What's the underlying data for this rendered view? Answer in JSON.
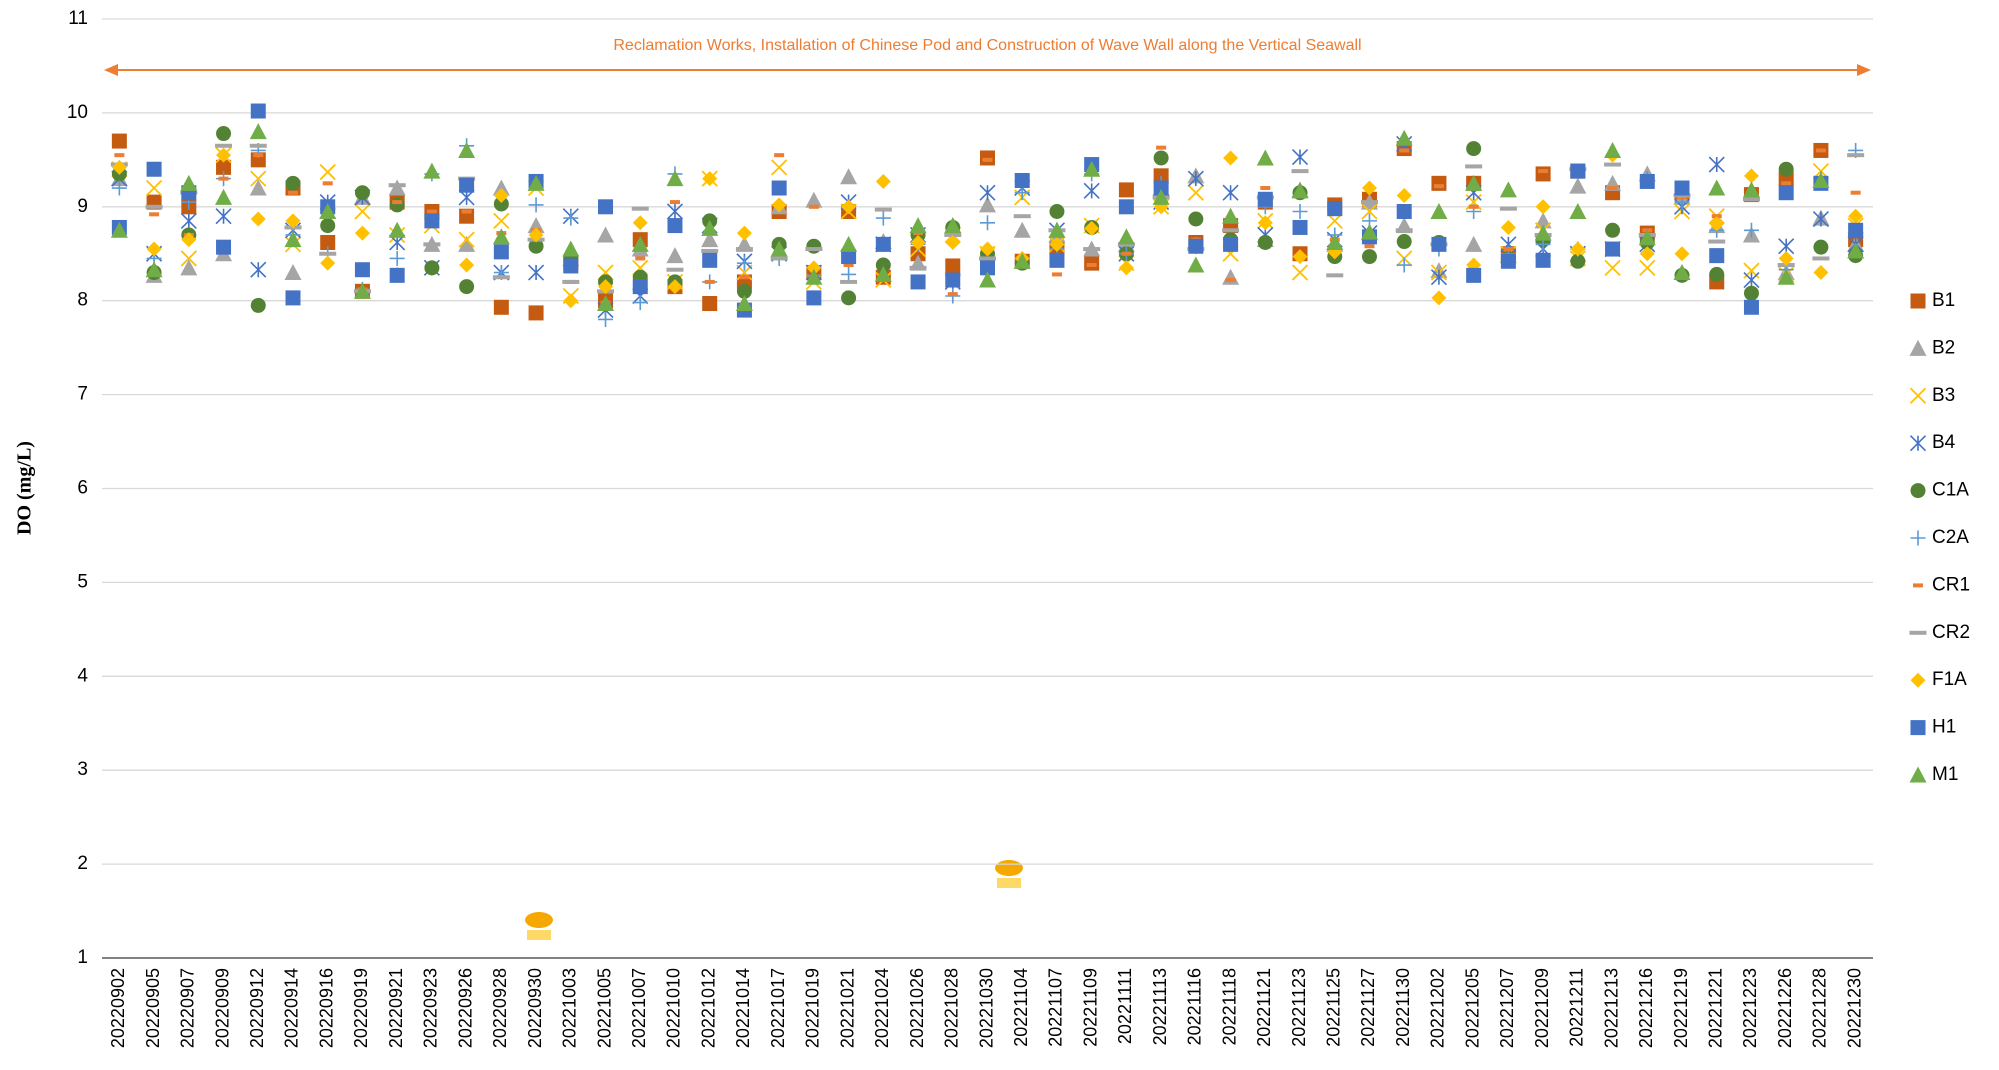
{
  "chart_data": {
    "type": "scatter",
    "y_label": "DO (mg/L)",
    "annotation": "Reclamation Works, Installation of Chinese Pod and Construction of Wave Wall along the Vertical Seawall",
    "annotation_color": "#ed7d31",
    "ylim": [
      1,
      11
    ],
    "yticks": [
      1,
      2,
      3,
      4,
      5,
      6,
      7,
      8,
      9,
      10,
      11
    ],
    "grid": true,
    "legend": "right",
    "categories": [
      "20220902",
      "20220905",
      "20220907",
      "20220909",
      "20220912",
      "20220914",
      "20220916",
      "20220919",
      "20220921",
      "20220923",
      "20220926",
      "20220928",
      "20220930",
      "20221003",
      "20221005",
      "20221007",
      "20221010",
      "20221012",
      "20221014",
      "20221017",
      "20221019",
      "20221021",
      "20221024",
      "20221026",
      "20221028",
      "20221030",
      "20221104",
      "20221107",
      "20221109",
      "20221111",
      "20221113",
      "20221116",
      "20221118",
      "20221121",
      "20221123",
      "20221125",
      "20221127",
      "20221130",
      "20221202",
      "20221205",
      "20221207",
      "20221209",
      "20221211",
      "20221213",
      "20221216",
      "20221219",
      "20221221",
      "20221223",
      "20221226",
      "20221228",
      "20221230"
    ],
    "series": [
      {
        "name": "B1",
        "color": "#c55a11",
        "marker": "square",
        "values": [
          9.7,
          9.05,
          9.0,
          9.42,
          9.5,
          9.2,
          8.62,
          8.1,
          9.05,
          8.95,
          8.9,
          7.93,
          7.87,
          8.4,
          8.0,
          8.65,
          8.15,
          7.97,
          8.2,
          8.95,
          8.3,
          8.95,
          8.25,
          8.5,
          8.37,
          9.52,
          8.42,
          8.55,
          8.4,
          9.18,
          9.33,
          8.62,
          8.8,
          9.05,
          8.5,
          9.02,
          9.08,
          9.62,
          9.25,
          9.25,
          8.5,
          9.35,
          9.38,
          9.15,
          8.72,
          9.15,
          8.2,
          9.13,
          9.3,
          9.6,
          8.65
        ]
      },
      {
        "name": "B2",
        "color": "#a5a5a5",
        "marker": "triangle",
        "values": [
          9.3,
          8.27,
          8.35,
          8.5,
          9.2,
          8.3,
          8.95,
          9.1,
          9.2,
          8.6,
          8.6,
          9.2,
          8.8,
          8.45,
          8.7,
          8.55,
          8.48,
          8.65,
          8.6,
          9.0,
          9.07,
          9.32,
          8.63,
          8.4,
          8.8,
          9.02,
          8.75,
          8.7,
          8.55,
          8.6,
          9.2,
          9.33,
          8.25,
          8.65,
          9.18,
          8.6,
          9.05,
          8.8,
          8.32,
          8.6,
          8.48,
          8.85,
          9.22,
          9.25,
          9.35,
          9.1,
          8.8,
          8.7,
          8.3,
          8.88,
          8.6
        ]
      },
      {
        "name": "B3",
        "color": "#ffc000",
        "marker": "x",
        "values": [
          9.4,
          9.2,
          8.45,
          9.55,
          9.3,
          8.6,
          9.37,
          8.95,
          8.7,
          8.8,
          8.65,
          8.85,
          9.2,
          8.05,
          8.3,
          8.35,
          8.2,
          9.3,
          8.3,
          9.42,
          8.2,
          8.95,
          8.22,
          8.55,
          8.7,
          8.5,
          9.1,
          8.6,
          8.8,
          8.4,
          9.0,
          9.15,
          8.5,
          8.85,
          8.3,
          8.85,
          8.95,
          8.45,
          8.3,
          9.05,
          8.5,
          8.75,
          8.45,
          8.35,
          8.35,
          8.95,
          8.9,
          8.32,
          8.28,
          9.38,
          8.8
        ]
      },
      {
        "name": "B4",
        "color": "#4472c4",
        "marker": "asterisk",
        "values": [
          9.3,
          8.5,
          8.85,
          8.9,
          8.33,
          8.75,
          9.05,
          9.1,
          8.62,
          8.35,
          9.1,
          8.3,
          8.3,
          8.9,
          7.9,
          8.05,
          8.95,
          8.8,
          8.42,
          8.5,
          8.3,
          9.05,
          8.6,
          8.7,
          8.2,
          9.15,
          9.2,
          8.75,
          9.17,
          8.5,
          9.05,
          9.3,
          9.15,
          8.7,
          9.53,
          8.65,
          8.72,
          9.67,
          8.25,
          9.15,
          8.6,
          8.55,
          8.5,
          8.55,
          8.6,
          9.0,
          9.45,
          8.22,
          8.58,
          8.87,
          8.6
        ]
      },
      {
        "name": "C1A",
        "color": "#548235",
        "marker": "circle",
        "values": [
          9.35,
          8.3,
          8.7,
          9.78,
          7.95,
          9.25,
          8.8,
          9.15,
          9.02,
          8.35,
          8.15,
          9.03,
          8.58,
          8.45,
          8.2,
          8.25,
          8.2,
          8.85,
          8.1,
          8.6,
          8.58,
          8.03,
          8.38,
          8.7,
          8.78,
          8.5,
          8.4,
          8.95,
          8.78,
          8.5,
          9.52,
          8.87,
          8.65,
          8.62,
          9.15,
          8.47,
          8.47,
          8.63,
          8.62,
          9.62,
          8.45,
          8.65,
          8.42,
          8.75,
          8.62,
          8.27,
          8.28,
          8.08,
          9.4,
          8.57,
          8.48
        ]
      },
      {
        "name": "C2A",
        "color": "#5b9bd5",
        "marker": "plus",
        "values": [
          9.2,
          8.45,
          9.05,
          9.3,
          9.6,
          8.7,
          8.5,
          8.12,
          8.45,
          9.35,
          9.65,
          8.3,
          9.02,
          8.88,
          7.8,
          7.98,
          9.35,
          8.2,
          8.4,
          8.45,
          8.27,
          8.28,
          8.88,
          8.6,
          8.05,
          8.83,
          9.15,
          8.55,
          9.35,
          8.5,
          9.25,
          8.6,
          8.6,
          9.0,
          8.95,
          8.7,
          8.85,
          8.38,
          8.55,
          8.95,
          8.5,
          8.6,
          8.55,
          8.55,
          9.3,
          9.05,
          8.75,
          8.75,
          8.33,
          9.3,
          9.6
        ]
      },
      {
        "name": "CR1",
        "color": "#ed7d31",
        "marker": "dash",
        "values": [
          9.55,
          8.92,
          8.7,
          9.3,
          9.55,
          9.15,
          9.25,
          8.12,
          9.05,
          8.95,
          8.95,
          8.72,
          8.75,
          8.2,
          7.98,
          8.45,
          9.05,
          8.2,
          8.25,
          9.55,
          9.0,
          8.38,
          8.25,
          8.72,
          8.07,
          9.5,
          8.45,
          8.28,
          8.38,
          8.5,
          9.63,
          8.65,
          8.22,
          9.2,
          8.45,
          8.65,
          8.58,
          9.6,
          9.22,
          9.0,
          8.55,
          9.38,
          8.55,
          9.2,
          8.75,
          9.1,
          8.9,
          9.1,
          9.25,
          9.6,
          9.15
        ]
      },
      {
        "name": "CR2",
        "color": "#a5a5a5",
        "marker": "longdash",
        "values": [
          9.45,
          9.0,
          9.15,
          9.65,
          9.65,
          8.78,
          8.5,
          8.1,
          9.23,
          8.6,
          9.3,
          8.25,
          8.65,
          8.2,
          8.1,
          8.98,
          8.33,
          8.53,
          8.55,
          8.45,
          8.55,
          8.2,
          8.97,
          8.35,
          8.7,
          8.45,
          8.9,
          8.75,
          8.55,
          8.6,
          9.1,
          8.55,
          8.75,
          9.1,
          9.38,
          8.27,
          9.05,
          8.75,
          8.6,
          9.43,
          8.98,
          8.7,
          9.4,
          9.45,
          8.7,
          9.12,
          8.63,
          9.08,
          8.38,
          8.45,
          9.55
        ]
      },
      {
        "name": "F1A",
        "color": "#ffc000",
        "marker": "diamond",
        "values": [
          9.42,
          8.55,
          8.65,
          9.55,
          8.87,
          8.85,
          8.4,
          8.72,
          8.28,
          8.85,
          8.38,
          9.12,
          8.7,
          8.0,
          8.15,
          8.83,
          8.15,
          9.3,
          8.72,
          9.02,
          8.35,
          9.0,
          9.27,
          8.62,
          8.62,
          8.55,
          8.45,
          8.6,
          8.77,
          8.35,
          9.0,
          8.57,
          9.52,
          8.83,
          8.47,
          8.52,
          9.2,
          9.12,
          8.03,
          8.38,
          8.78,
          9.0,
          8.55,
          9.55,
          8.5,
          8.5,
          8.82,
          9.33,
          8.45,
          8.3,
          8.9
        ]
      },
      {
        "name": "H1",
        "color": "#4472c4",
        "marker": "square",
        "values": [
          8.78,
          9.4,
          9.15,
          8.57,
          10.02,
          8.03,
          9.0,
          8.33,
          8.27,
          8.85,
          9.23,
          8.52,
          9.27,
          8.37,
          9.0,
          8.15,
          8.8,
          8.43,
          7.9,
          9.2,
          8.03,
          8.47,
          8.6,
          8.2,
          8.22,
          8.35,
          9.28,
          8.43,
          9.45,
          9.0,
          9.2,
          8.58,
          8.6,
          9.08,
          8.78,
          8.98,
          8.68,
          8.95,
          8.6,
          8.27,
          8.42,
          8.43,
          9.38,
          8.55,
          9.27,
          9.2,
          8.48,
          7.93,
          9.15,
          9.25,
          8.75
        ]
      },
      {
        "name": "M1",
        "color": "#70ad47",
        "marker": "triangle",
        "values": [
          8.75,
          8.33,
          9.25,
          9.1,
          9.8,
          8.65,
          8.95,
          8.1,
          8.75,
          9.38,
          9.6,
          8.68,
          9.25,
          8.55,
          7.97,
          8.6,
          9.3,
          8.77,
          7.97,
          8.55,
          8.25,
          8.6,
          8.28,
          8.8,
          8.8,
          8.22,
          8.42,
          8.75,
          9.4,
          8.68,
          9.1,
          8.38,
          8.9,
          9.52,
          9.17,
          8.62,
          8.73,
          9.73,
          8.95,
          9.25,
          9.18,
          8.72,
          8.95,
          9.6,
          8.67,
          8.3,
          9.2,
          9.18,
          8.25,
          9.28,
          8.53
        ]
      }
    ]
  }
}
